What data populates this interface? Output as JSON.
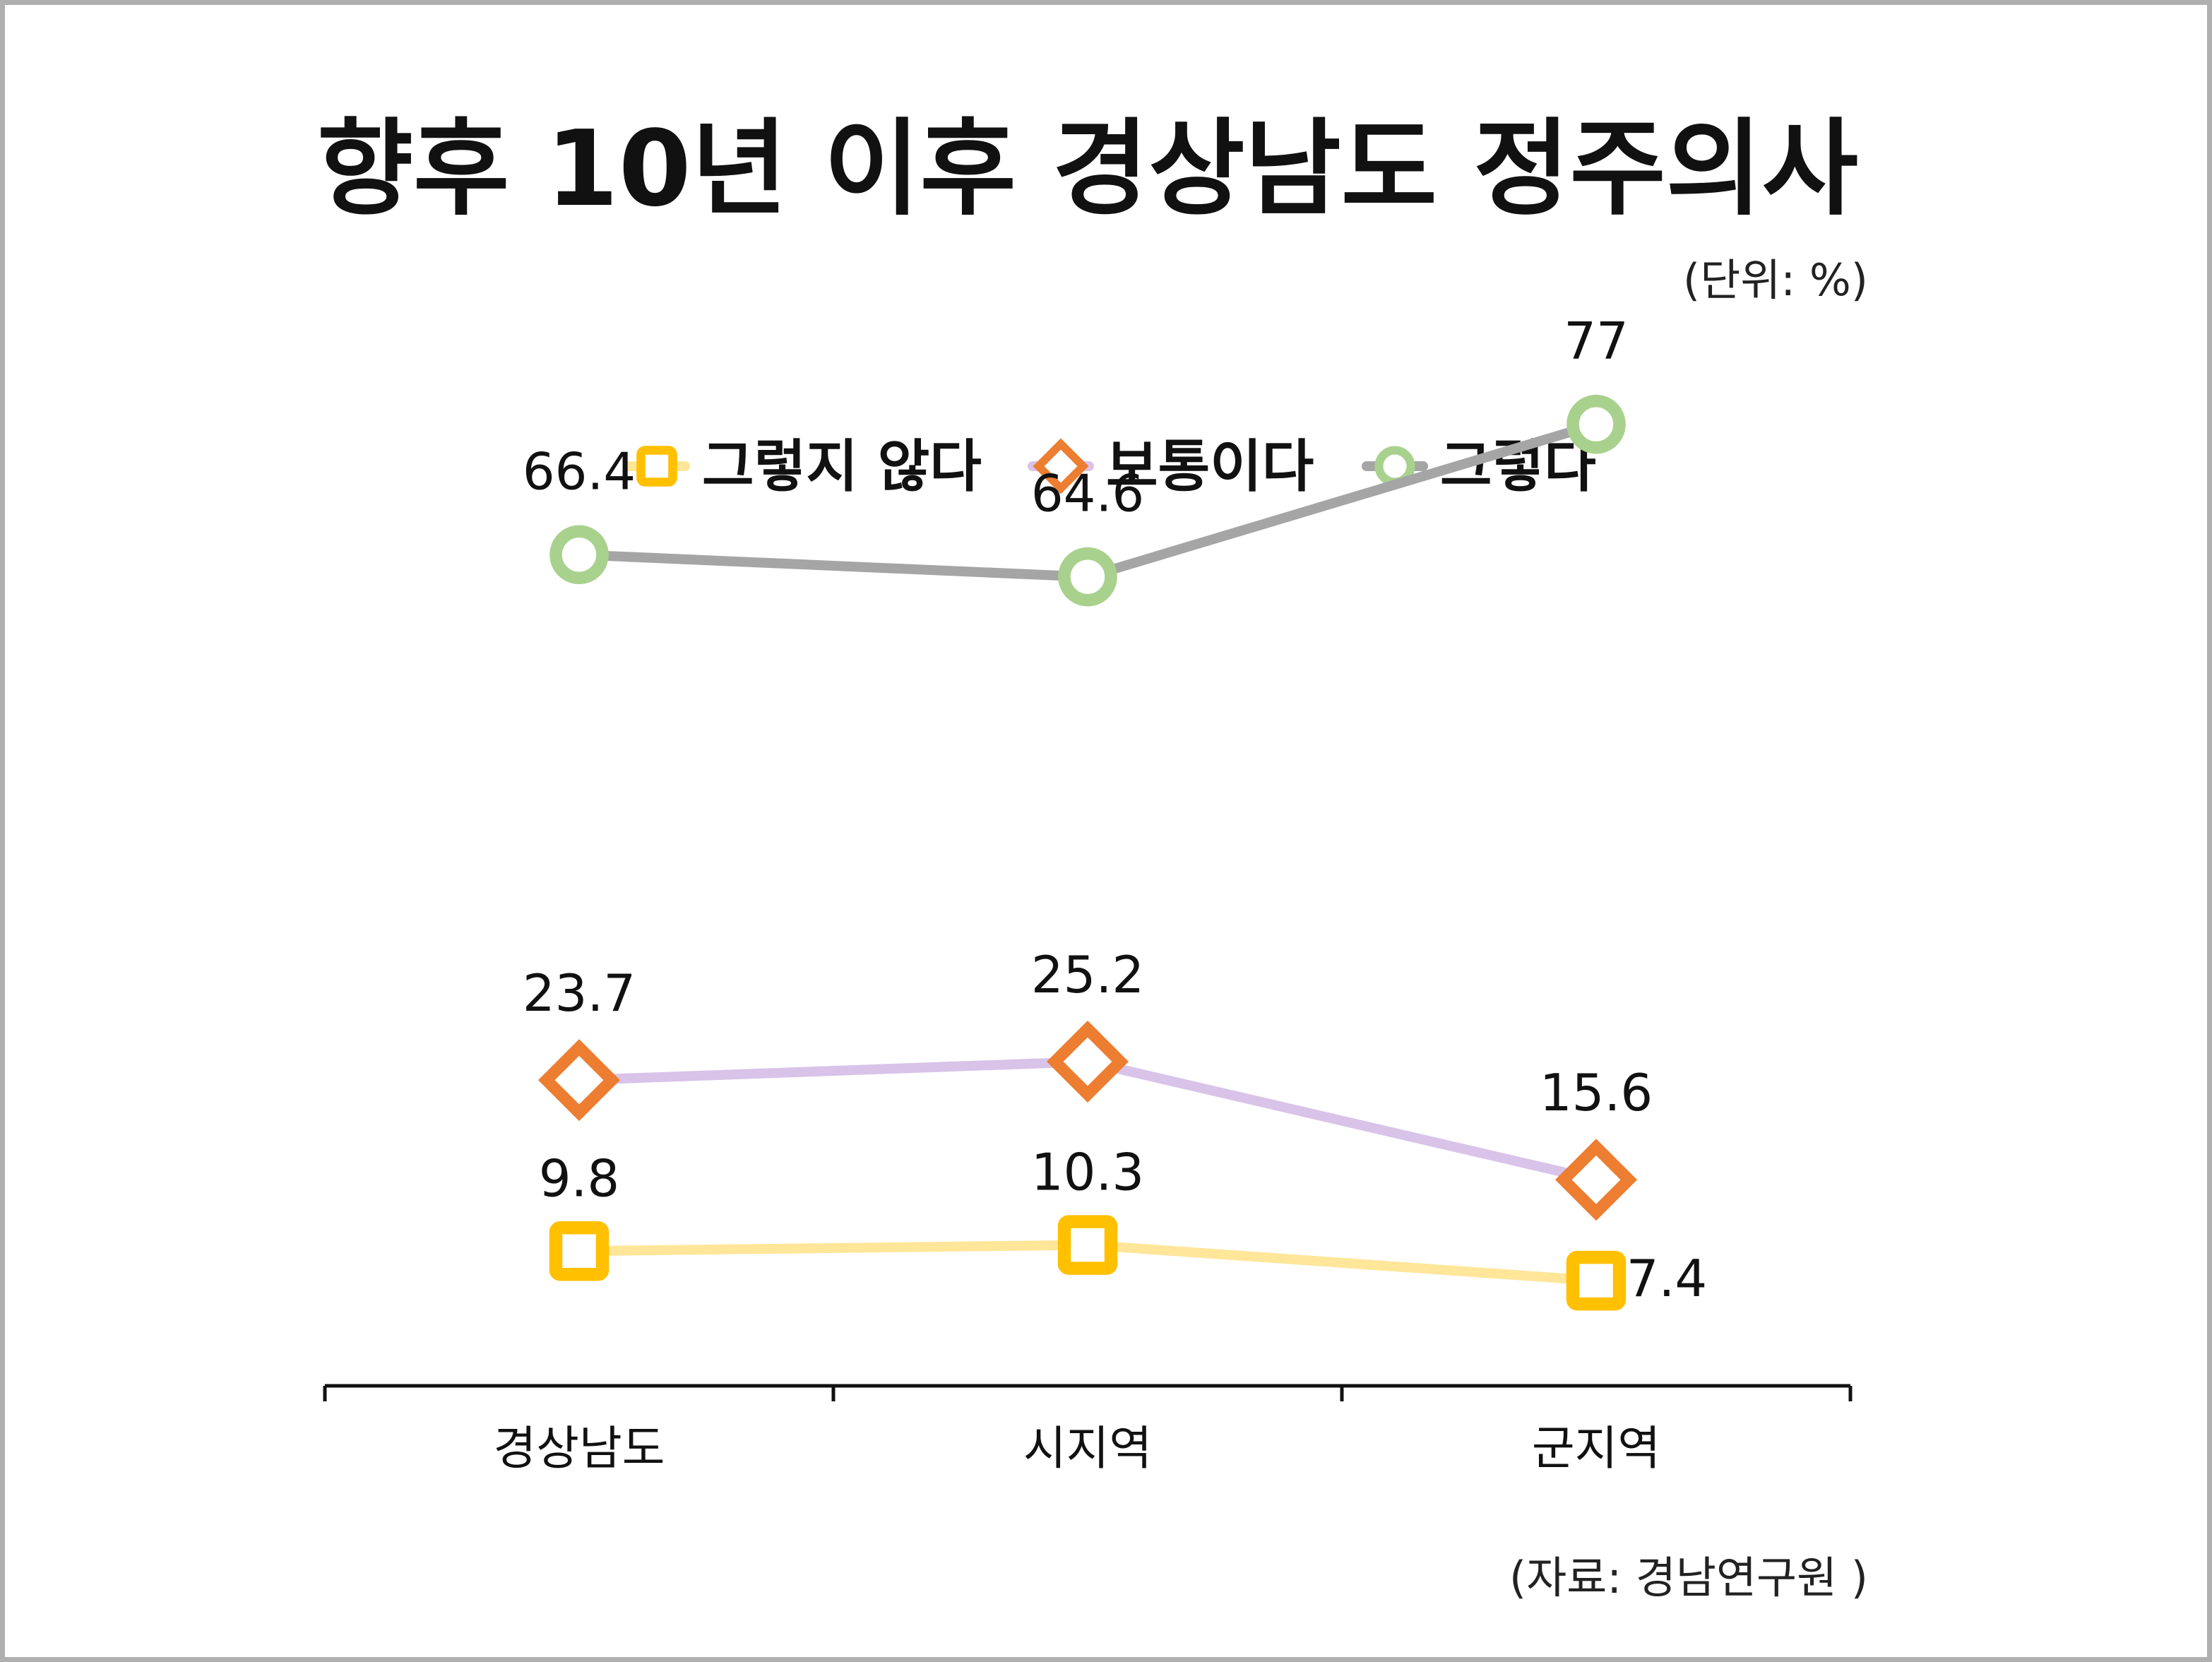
{
  "chart_data": {
    "type": "line",
    "title": "향후 10년 이후 경상남도 정주의사",
    "unit_note": "(단위: %)",
    "source_note": "(자료: 경남연구원 )",
    "categories": [
      "경상남도",
      "시지역",
      "군지역"
    ],
    "ylim": [
      0,
      100
    ],
    "grid": false,
    "legend_position": "top",
    "series": [
      {
        "name": "그렇지 않다",
        "values": [
          9.8,
          10.3,
          7.4
        ],
        "labels": [
          "9.8",
          "10.3",
          "7.4"
        ],
        "line_color": "#ffe699",
        "marker_color": "#ffc000",
        "marker": "square"
      },
      {
        "name": "보통이다",
        "values": [
          23.7,
          25.2,
          15.6
        ],
        "labels": [
          "23.7",
          "25.2",
          "15.6"
        ],
        "line_color": "#d9c3e9",
        "marker_color": "#ed7d31",
        "marker": "diamond"
      },
      {
        "name": "그렇다",
        "values": [
          66.4,
          64.6,
          77
        ],
        "labels": [
          "66.4",
          "64.6",
          "77"
        ],
        "line_color": "#a5a5a5",
        "marker_color": "#a9d18e",
        "marker": "circle"
      }
    ]
  }
}
